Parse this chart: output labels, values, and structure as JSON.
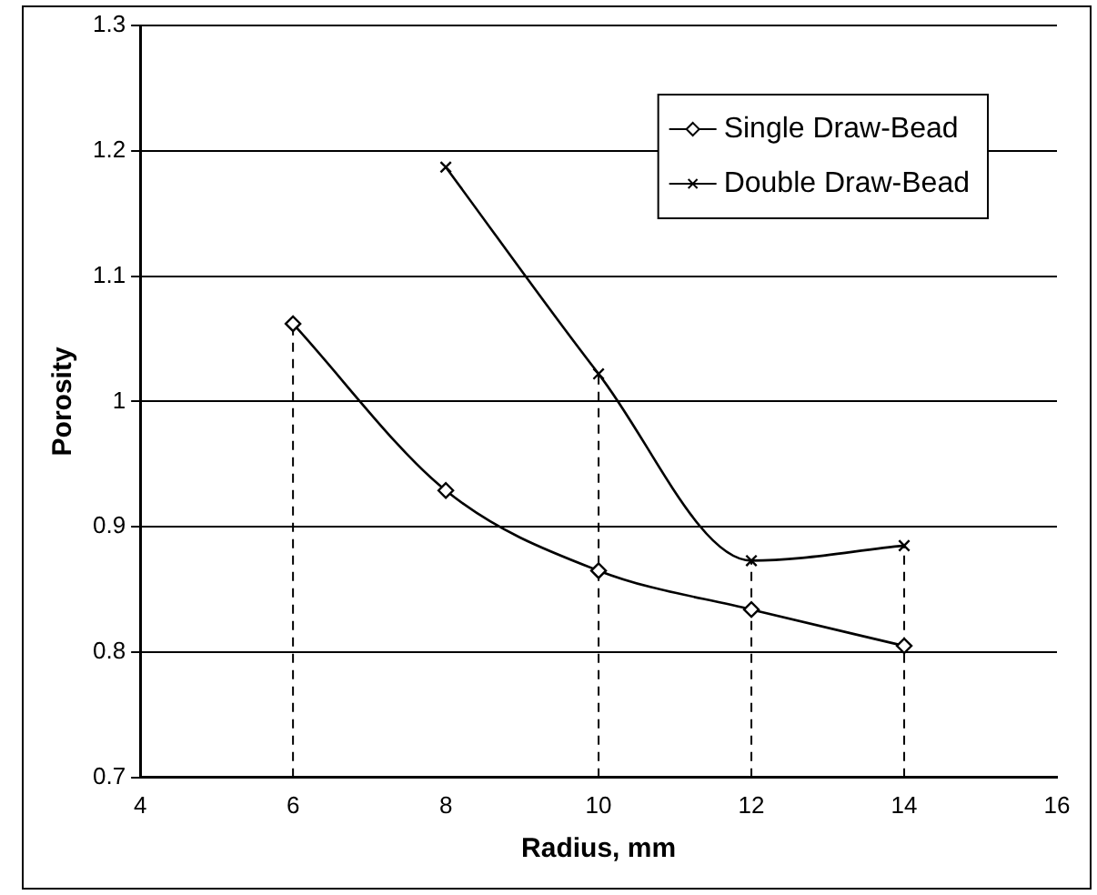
{
  "chart_data": {
    "type": "line",
    "xlabel": "Radius, mm",
    "ylabel": "Porosity",
    "xlim": [
      4,
      16
    ],
    "xticks": [
      4,
      6,
      8,
      10,
      12,
      14,
      16
    ],
    "ylim": [
      0.7,
      1.3
    ],
    "yticks": [
      0.7,
      0.8,
      0.9,
      1,
      1.1,
      1.2,
      1.3
    ],
    "grid": "y",
    "legend": "top right",
    "line_style": "solid",
    "series": [
      {
        "name": "Single Draw-Bead",
        "color": "#000000",
        "marker": "diamond",
        "x": [
          6,
          8,
          10,
          12,
          14
        ],
        "values": [
          1.062,
          0.929,
          0.865,
          0.834,
          0.805
        ]
      },
      {
        "name": "Double Draw-Bead",
        "color": "#000000",
        "marker": "cross",
        "x": [
          8,
          10,
          12,
          14
        ],
        "values": [
          1.187,
          1.022,
          0.873,
          0.885
        ]
      }
    ],
    "ref_lines": [
      {
        "axis": "x",
        "value": 6,
        "line_style": "dashed",
        "color": "#000000"
      },
      {
        "axis": "x",
        "value": 10,
        "line_style": "dashed",
        "color": "#000000"
      },
      {
        "axis": "x",
        "value": 12,
        "line_style": "dashed",
        "color": "#000000"
      },
      {
        "axis": "x",
        "value": 14,
        "line_style": "dashed",
        "color": "#000000"
      }
    ]
  }
}
